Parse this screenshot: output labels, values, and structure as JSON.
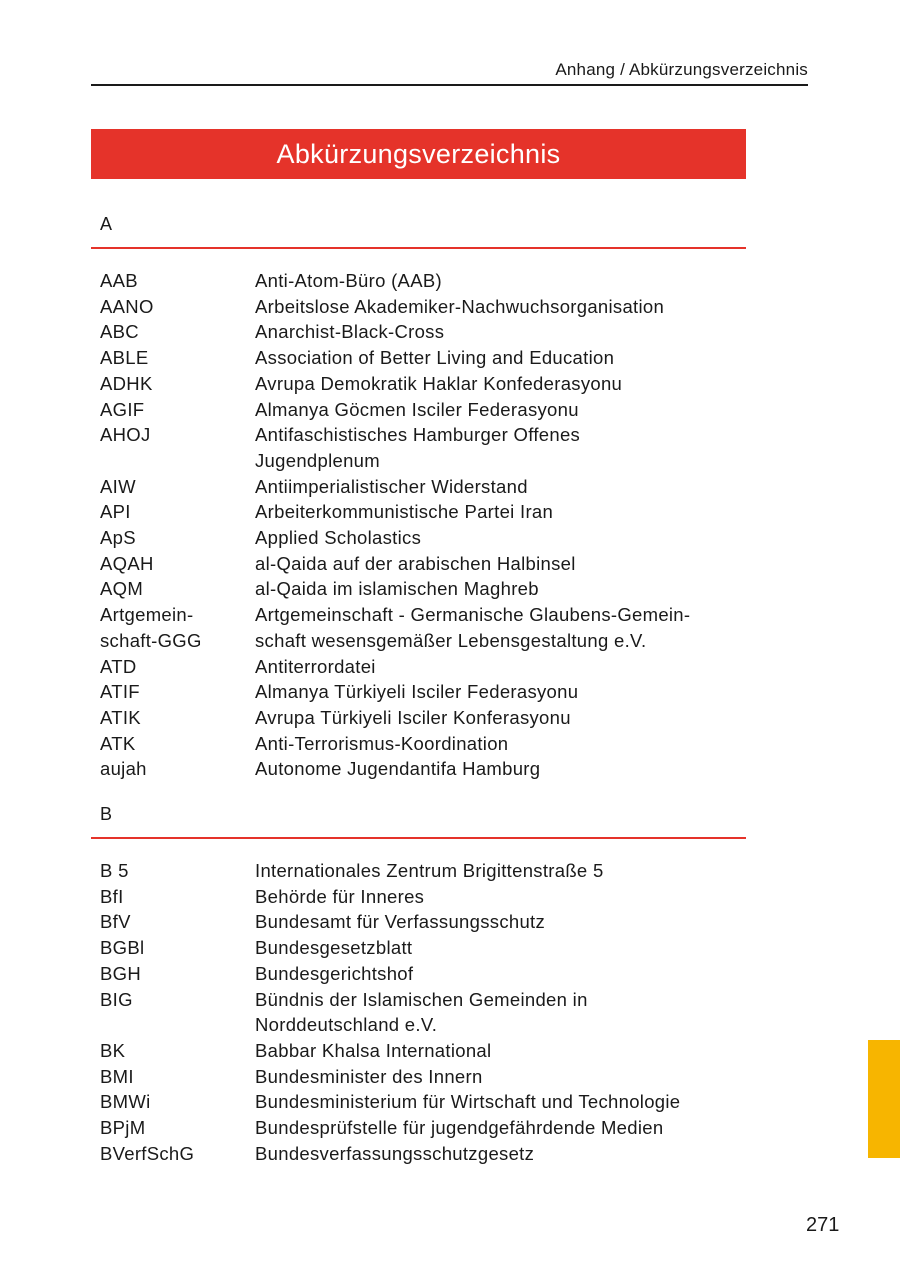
{
  "header": {
    "running_head": "Anhang / Abkürzungsverzeichnis"
  },
  "title": "Abkürzungsverzeichnis",
  "sections": [
    {
      "letter": "A",
      "entries": [
        {
          "abbr": "AAB",
          "def": "Anti-Atom-Büro (AAB)"
        },
        {
          "abbr": "AANO",
          "def": "Arbeitslose Akademiker-Nachwuchsorganisation"
        },
        {
          "abbr": "ABC",
          "def": "Anarchist-Black-Cross"
        },
        {
          "abbr": "ABLE",
          "def": "Association of Better Living and Education"
        },
        {
          "abbr": "ADHK",
          "def": "Avrupa Demokratik Haklar Konfederasyonu"
        },
        {
          "abbr": "AGIF",
          "def": "Almanya Göcmen Isciler Federasyonu"
        },
        {
          "abbr": "AHOJ",
          "def": "Antifaschistisches Hamburger Offenes\nJugendplenum"
        },
        {
          "abbr": "AIW",
          "def": "Antiimperialistischer Widerstand"
        },
        {
          "abbr": "API",
          "def": "Arbeiterkommunistische Partei Iran"
        },
        {
          "abbr": "ApS",
          "def": "Applied Scholastics"
        },
        {
          "abbr": "AQAH",
          "def": "al-Qaida auf der arabischen Halbinsel"
        },
        {
          "abbr": "AQM",
          "def": "al-Qaida im islamischen Maghreb"
        },
        {
          "abbr": "Artgemein-\nschaft-GGG",
          "def": "Artgemeinschaft - Germanische Glaubens-Gemein-\nschaft wesensgemäßer Lebensgestaltung e.V."
        },
        {
          "abbr": "ATD",
          "def": "Antiterrordatei"
        },
        {
          "abbr": "ATIF",
          "def": "Almanya Türkiyeli Isciler Federasyonu"
        },
        {
          "abbr": "ATIK",
          "def": "Avrupa Türkiyeli Isciler Konferasyonu"
        },
        {
          "abbr": "ATK",
          "def": "Anti-Terrorismus-Koordination"
        },
        {
          "abbr": "aujah",
          "def": "Autonome Jugendantifa Hamburg"
        }
      ]
    },
    {
      "letter": "B",
      "entries": [
        {
          "abbr": "B 5",
          "def": "Internationales Zentrum Brigittenstraße 5"
        },
        {
          "abbr": "BfI",
          "def": "Behörde für Inneres"
        },
        {
          "abbr": "BfV",
          "def": "Bundesamt für Verfassungsschutz"
        },
        {
          "abbr": "BGBl",
          "def": "Bundesgesetzblatt"
        },
        {
          "abbr": "BGH",
          "def": "Bundesgerichtshof"
        },
        {
          "abbr": "BIG",
          "def": "Bündnis der Islamischen Gemeinden in\nNorddeutschland e.V."
        },
        {
          "abbr": "BK",
          "def": "Babbar Khalsa International"
        },
        {
          "abbr": "BMI",
          "def": "Bundesminister des Innern"
        },
        {
          "abbr": "BMWi",
          "def": "Bundesministerium für Wirtschaft und Technologie"
        },
        {
          "abbr": "BPjM",
          "def": "Bundesprüfstelle für jugendgefährdende Medien"
        },
        {
          "abbr": "BVerfSchG",
          "def": "Bundesverfassungsschutzgesetz"
        }
      ]
    }
  ],
  "footer": {
    "page_number": "271"
  },
  "colors": {
    "accent_red": "#e5332a",
    "tab_yellow": "#f7b500"
  }
}
